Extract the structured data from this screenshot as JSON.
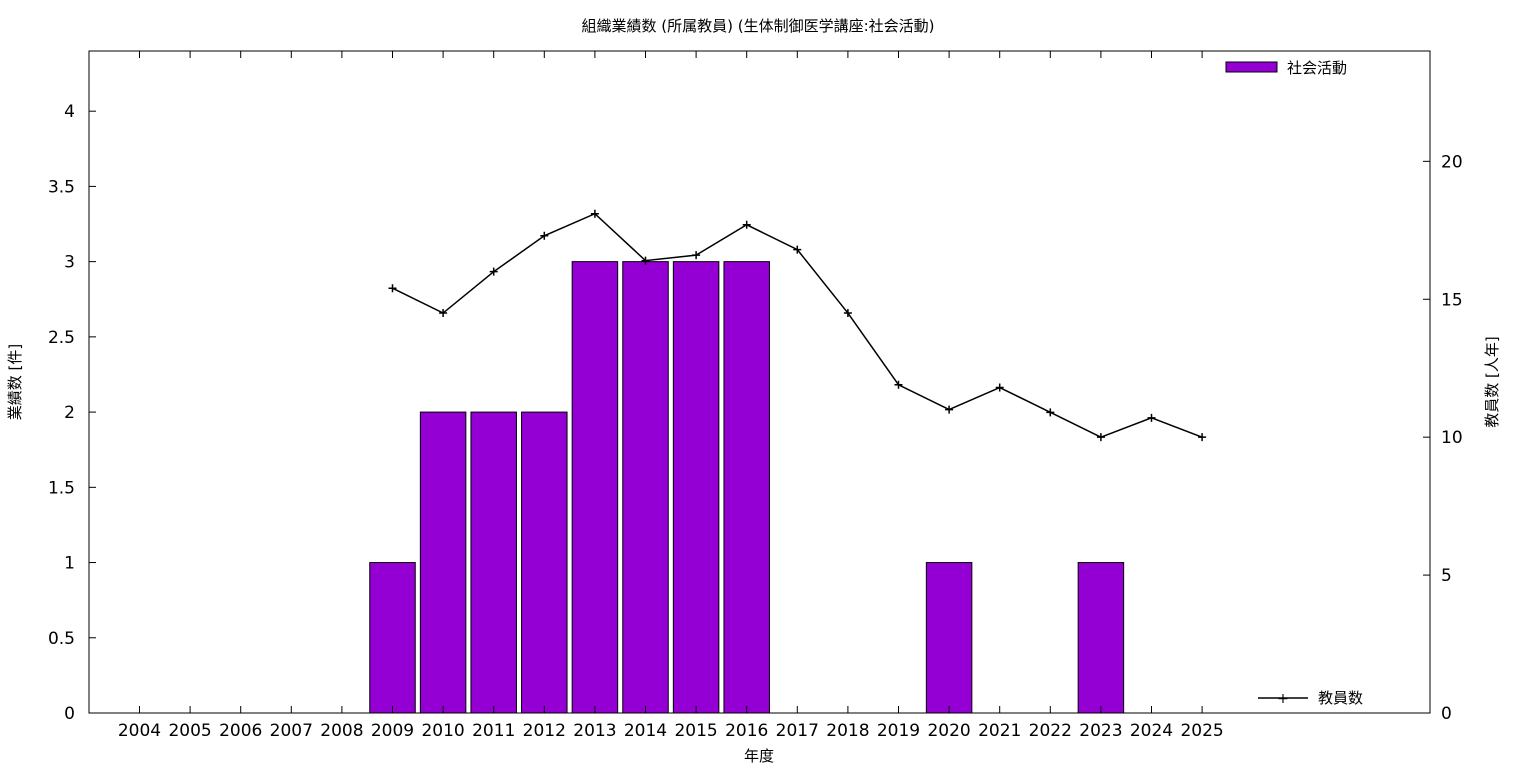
{
  "chart_data": {
    "type": "bar",
    "title": "組織業績数 (所属教員) (生体制御医学講座:社会活動)",
    "xlabel": "年度",
    "ylabel": "業績数 [件]",
    "y2label": "教員数 [人年]",
    "categories": [
      "2004",
      "2005",
      "2006",
      "2007",
      "2008",
      "2009",
      "2010",
      "2011",
      "2012",
      "2013",
      "2014",
      "2015",
      "2016",
      "2017",
      "2018",
      "2019",
      "2020",
      "2021",
      "2022",
      "2023",
      "2024",
      "2025"
    ],
    "ylim": [
      0,
      4.4
    ],
    "yticks": [
      0,
      0.5,
      1,
      1.5,
      2,
      2.5,
      3,
      3.5,
      4
    ],
    "y2lim": [
      0,
      24
    ],
    "y2ticks": [
      0,
      5,
      10,
      15,
      20
    ],
    "series": [
      {
        "name": "社会活動",
        "kind": "bar",
        "axis": "left",
        "color": "#9400d3",
        "values": [
          0,
          0,
          0,
          0,
          0,
          1,
          2,
          2,
          2,
          3,
          3,
          3,
          3,
          0,
          0,
          0,
          1,
          0,
          0,
          1,
          0,
          0
        ]
      },
      {
        "name": "教員数",
        "kind": "line",
        "axis": "right",
        "color": "#000000",
        "values": [
          null,
          null,
          null,
          null,
          null,
          15.4,
          14.5,
          16.0,
          17.3,
          18.1,
          16.4,
          16.6,
          17.7,
          16.8,
          14.5,
          11.9,
          11.0,
          11.8,
          10.9,
          10.0,
          10.7,
          10.0
        ]
      }
    ],
    "grid": false,
    "legend": [
      "top-right",
      "bottom-right"
    ]
  }
}
